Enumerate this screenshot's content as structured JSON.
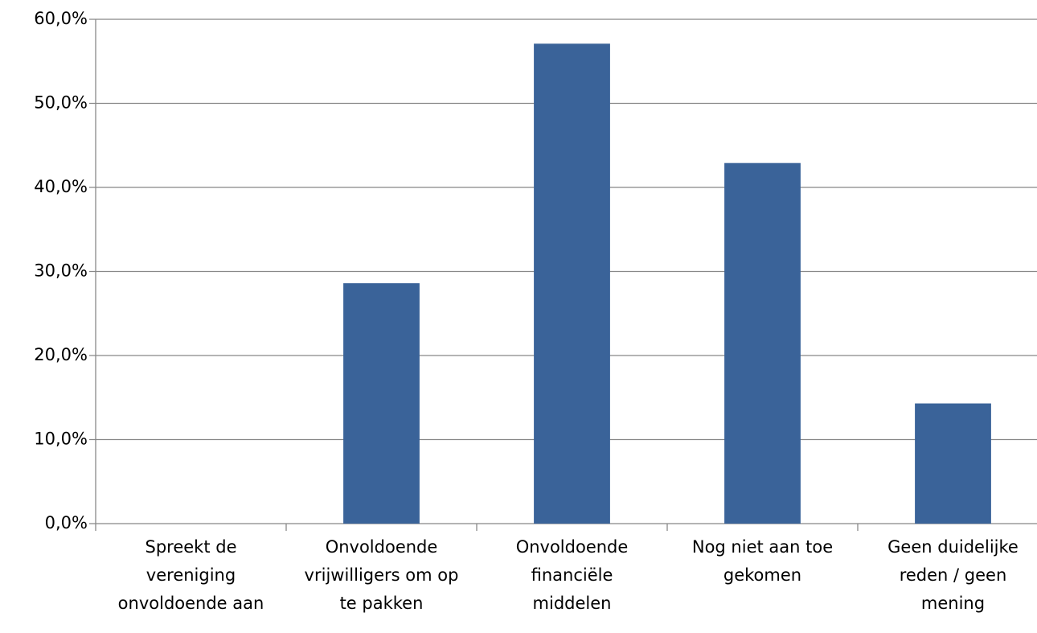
{
  "chart_data": {
    "type": "bar",
    "categories": [
      "Spreekt de vereniging onvoldoende aan",
      "Onvoldoende vrijwilligers om op te pakken",
      "Onvoldoende financiële middelen",
      "Nog niet aan toe gekomen",
      "Geen duidelijke reden / geen mening"
    ],
    "values": [
      0,
      28.6,
      57.1,
      42.9,
      14.3
    ],
    "color": "#3a6399",
    "ylim": [
      0,
      60
    ],
    "yticks": [
      {
        "value": 0,
        "label": "0,0%"
      },
      {
        "value": 10,
        "label": "10,0%"
      },
      {
        "value": 20,
        "label": "20,0%"
      },
      {
        "value": 30,
        "label": "30,0%"
      },
      {
        "value": 40,
        "label": "40,0%"
      },
      {
        "value": 50,
        "label": "50,0%"
      },
      {
        "value": 60,
        "label": "60,0%"
      }
    ],
    "grid": true
  }
}
